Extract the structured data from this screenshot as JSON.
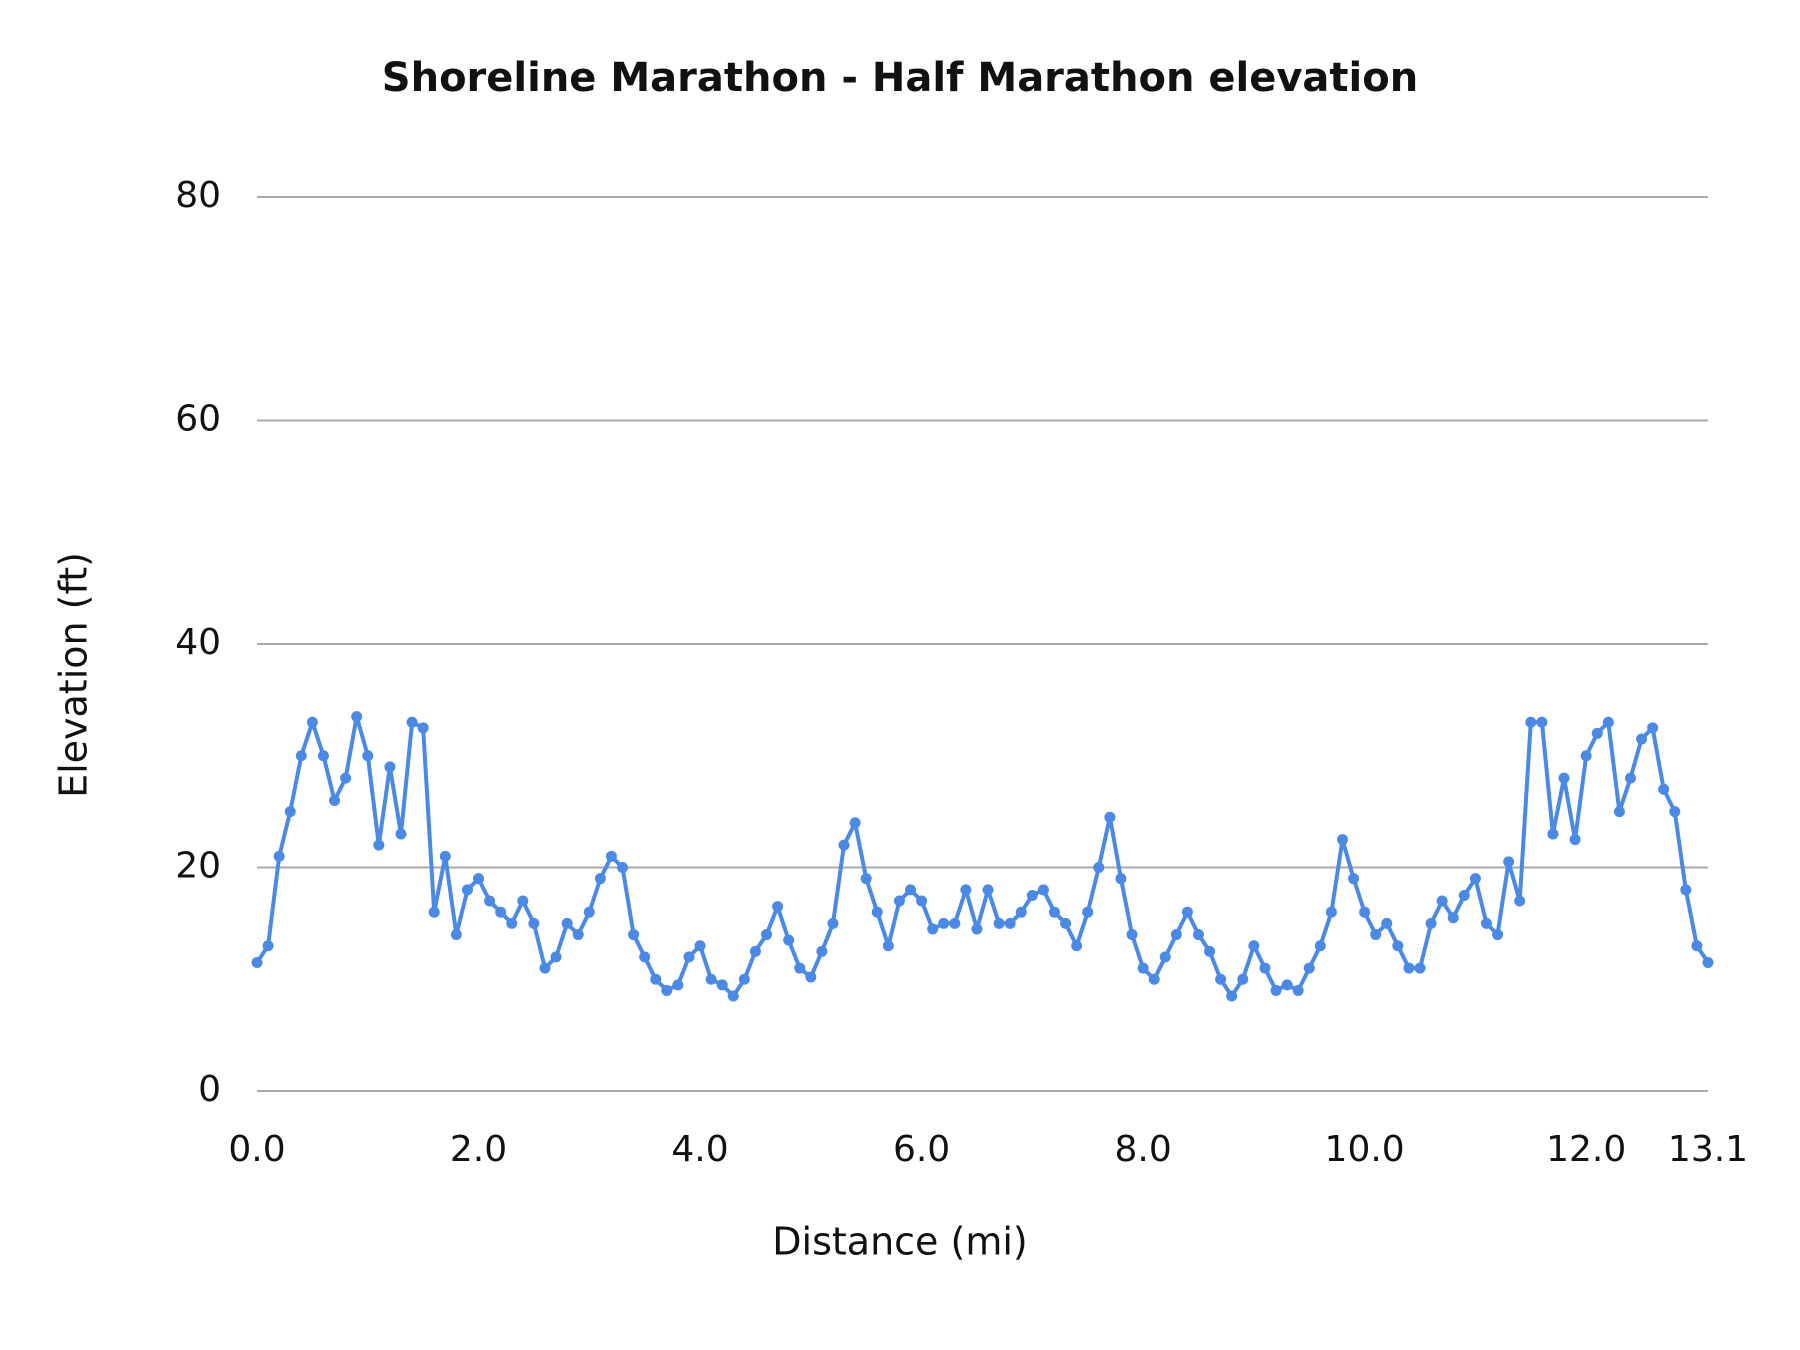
{
  "chart_data": {
    "type": "line",
    "title": "Shoreline Marathon - Half Marathon elevation",
    "x_label": "Distance (mi)",
    "y_label": "Elevation (ft)",
    "color": "#4a8ae6",
    "grid": true,
    "xlim": [
      0,
      13.1
    ],
    "ylim": [
      0,
      80
    ],
    "xticks": [
      {
        "value": 0,
        "label": "0.0"
      },
      {
        "value": 2,
        "label": "2.0"
      },
      {
        "value": 4,
        "label": "4.0"
      },
      {
        "value": 6,
        "label": "6.0"
      },
      {
        "value": 8,
        "label": "8.0"
      },
      {
        "value": 10,
        "label": "10.0"
      },
      {
        "value": 12,
        "label": "12.0"
      },
      {
        "value": 13.1,
        "label": "13.1"
      }
    ],
    "yticks": [
      0,
      20,
      40,
      60,
      80
    ],
    "x": [
      0,
      0.1,
      0.2,
      0.3,
      0.4,
      0.5,
      0.6,
      0.7,
      0.8,
      0.9,
      1,
      1.1,
      1.2,
      1.3,
      1.4,
      1.5,
      1.6,
      1.7,
      1.8,
      1.9,
      2,
      2.1,
      2.2,
      2.3,
      2.4,
      2.5,
      2.6,
      2.7,
      2.8,
      2.9,
      3,
      3.1,
      3.2,
      3.3,
      3.4,
      3.5,
      3.6,
      3.7,
      3.8,
      3.9,
      4,
      4.1,
      4.2,
      4.3,
      4.4,
      4.5,
      4.6,
      4.7,
      4.8,
      4.9,
      5,
      5.1,
      5.2,
      5.3,
      5.4,
      5.5,
      5.6,
      5.7,
      5.8,
      5.9,
      6,
      6.1,
      6.2,
      6.3,
      6.4,
      6.5,
      6.6,
      6.7,
      6.8,
      6.9,
      7,
      7.1,
      7.2,
      7.3,
      7.4,
      7.5,
      7.6,
      7.7,
      7.8,
      7.9,
      8,
      8.1,
      8.2,
      8.3,
      8.4,
      8.5,
      8.6,
      8.7,
      8.8,
      8.9,
      9,
      9.1,
      9.2,
      9.3,
      9.4,
      9.5,
      9.6,
      9.7,
      9.8,
      9.9,
      10,
      10.1,
      10.2,
      10.3,
      10.4,
      10.5,
      10.6,
      10.7,
      10.8,
      10.9,
      11,
      11.1,
      11.2,
      11.3,
      11.4,
      11.5,
      11.6,
      11.7,
      11.8,
      11.9,
      12,
      12.1,
      12.2,
      12.3,
      12.4,
      12.5,
      12.6,
      12.7,
      12.8,
      12.9,
      13,
      13.1
    ],
    "values": [
      11.5,
      13,
      21,
      25,
      30,
      33,
      30,
      26,
      28,
      33.5,
      30,
      22,
      29,
      23,
      33,
      32.5,
      16,
      21,
      14,
      18,
      19,
      17,
      16,
      15,
      17,
      15,
      11,
      12,
      15,
      14,
      16,
      19,
      21,
      20,
      14,
      12,
      10,
      9,
      9.5,
      12,
      13,
      10,
      9.5,
      8.5,
      10,
      12.5,
      14,
      16.5,
      13.5,
      11,
      10.2,
      12.5,
      15,
      22,
      24,
      19,
      16,
      13,
      17,
      18,
      17,
      14.5,
      15,
      15,
      18,
      14.5,
      18,
      15,
      15,
      16,
      17.5,
      18,
      16,
      15,
      13,
      16,
      20,
      24.5,
      19,
      14,
      11,
      10,
      12,
      14,
      16,
      14,
      12.5,
      10,
      8.5,
      10,
      13,
      11,
      9,
      9.5,
      9,
      11,
      13,
      16,
      22.5,
      19,
      16,
      14,
      15,
      13,
      11,
      11,
      15,
      17,
      15.5,
      17.5,
      19,
      15,
      14,
      20.5,
      17,
      33,
      33,
      23,
      28,
      22.5,
      30,
      32,
      33,
      25,
      28,
      31.5,
      32.5,
      27,
      25,
      18,
      13,
      11.5
    ]
  }
}
